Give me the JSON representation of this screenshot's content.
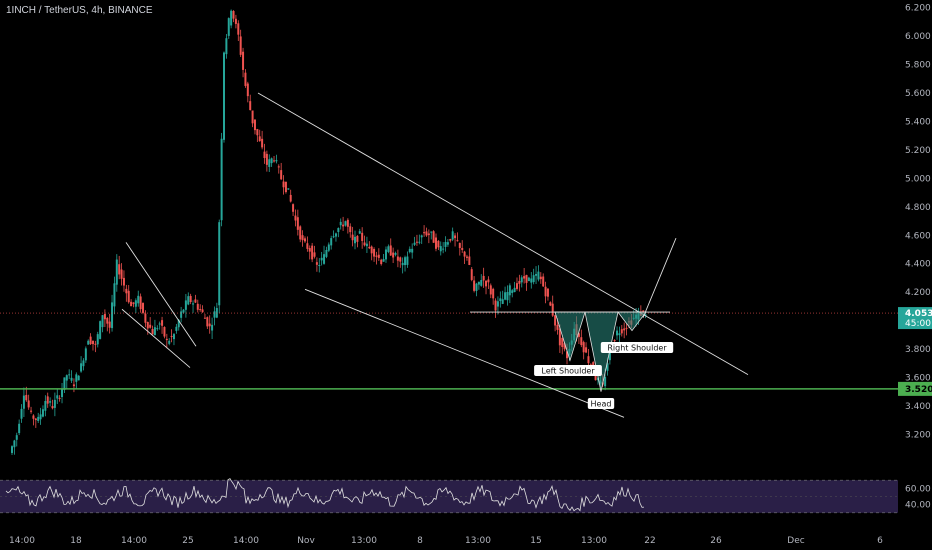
{
  "header": {
    "title": "1INCH / TetherUS, 4h, BINANCE"
  },
  "colors": {
    "background": "#000000",
    "up": "#26a69a",
    "down": "#ef5350",
    "support": "#4caf50",
    "rsi_band": "#2a1f47",
    "rsi_line": "#e0e0e0",
    "trendline": "#e0e0e0",
    "pattern_fill": "#2a8a7f"
  },
  "chart_data": {
    "type": "candlestick",
    "title": "1INCH / TetherUS, 4h, BINANCE",
    "y_ticks": [
      "6.200",
      "6.000",
      "5.800",
      "5.600",
      "5.400",
      "5.200",
      "5.000",
      "4.800",
      "4.600",
      "4.400",
      "4.200",
      "3.800",
      "3.600",
      "3.400",
      "3.200"
    ],
    "ylim": [
      3.02,
      6.24
    ],
    "x_ticks": [
      "14:00",
      "18",
      "14:00",
      "25",
      "14:00",
      "Nov",
      "13:00",
      "8",
      "13:00",
      "15",
      "13:00",
      "22",
      "26",
      "Dec",
      "6"
    ],
    "last_price": "4.053",
    "countdown": "45:00",
    "support_level": "3.520",
    "rsi": {
      "ticks": [
        "60.00",
        "40.00"
      ],
      "upper": 70,
      "lower": 30
    },
    "annotations": [
      "Left Shoulder",
      "Head",
      "Right Shoulder"
    ],
    "price_path": [
      3.07,
      3.2,
      3.5,
      3.33,
      3.3,
      3.44,
      3.4,
      3.48,
      3.62,
      3.56,
      3.68,
      3.88,
      3.82,
      4.05,
      3.95,
      4.4,
      4.25,
      4.1,
      4.15,
      4.0,
      3.92,
      3.98,
      3.85,
      3.9,
      4.05,
      4.15,
      4.12,
      4.05,
      3.95,
      4.1,
      5.9,
      6.2,
      6.0,
      5.65,
      5.4,
      5.25,
      5.1,
      5.15,
      5.0,
      4.9,
      4.7,
      4.55,
      4.5,
      4.38,
      4.45,
      4.6,
      4.65,
      4.7,
      4.55,
      4.6,
      4.52,
      4.48,
      4.42,
      4.5,
      4.45,
      4.38,
      4.5,
      4.55,
      4.62,
      4.6,
      4.5,
      4.55,
      4.6,
      4.5,
      4.45,
      4.2,
      4.3,
      4.25,
      4.1,
      4.15,
      4.22,
      4.25,
      4.3,
      4.28,
      4.33,
      4.2,
      4.05,
      3.85,
      3.75,
      3.95,
      3.85,
      3.72,
      3.6,
      3.53,
      3.8,
      3.92,
      3.95,
      4.0,
      4.05,
      4.06
    ]
  }
}
